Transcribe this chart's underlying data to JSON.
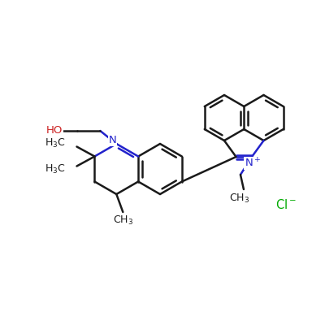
{
  "bg_color": "#ffffff",
  "line_color": "#1a1a1a",
  "blue_color": "#2222cc",
  "red_color": "#cc2222",
  "green_color": "#00aa00",
  "lw": 1.8,
  "fs": 9.5,
  "figsize": [
    4.0,
    4.0
  ],
  "dpi": 100
}
